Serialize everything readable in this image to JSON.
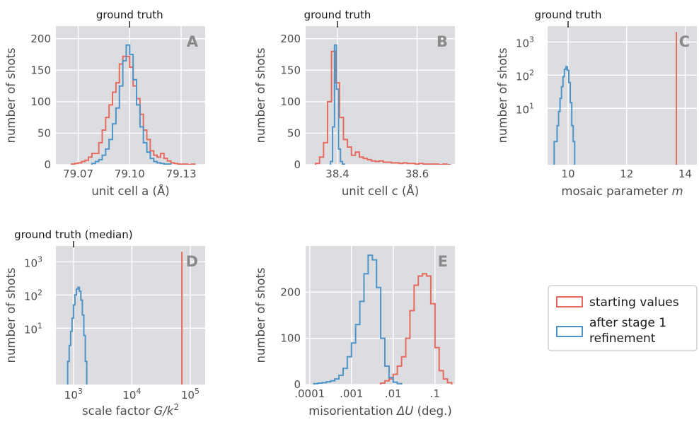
{
  "legend": {
    "entries": [
      {
        "name": "starting values",
        "color": "#e8695d"
      },
      {
        "name": "after stage 1 refinement",
        "line1": "after stage 1",
        "line2": "refinement",
        "color": "#4d94c9"
      }
    ]
  },
  "chart_data": [
    {
      "id": "A",
      "type": "histogram",
      "panel_letter": "A",
      "annotation": "ground truth",
      "annotation_x": 79.1,
      "xlabel": "unit cell a (Å)",
      "ylabel": "number of shots",
      "xlim": [
        79.057,
        79.144
      ],
      "ylim": [
        0,
        220
      ],
      "xticks": [
        {
          "v": 79.07,
          "label": "79.07"
        },
        {
          "v": 79.1,
          "label": "79.10"
        },
        {
          "v": 79.13,
          "label": "79.13"
        }
      ],
      "yticks": [
        {
          "v": 0,
          "label": "0"
        },
        {
          "v": 50,
          "label": "50"
        },
        {
          "v": 100,
          "label": "100"
        },
        {
          "v": 150,
          "label": "150"
        },
        {
          "v": 200,
          "label": "200"
        }
      ],
      "series": [
        {
          "name": "starting values",
          "color": "#e8695d",
          "x": [
            79.067,
            79.069,
            79.071,
            79.073,
            79.075,
            79.077,
            79.079,
            79.081,
            79.083,
            79.085,
            79.087,
            79.089,
            79.091,
            79.093,
            79.095,
            79.097,
            79.099,
            79.101,
            79.103,
            79.105,
            79.107,
            79.109,
            79.111,
            79.113,
            79.115,
            79.117,
            79.119,
            79.121,
            79.123,
            79.125,
            79.127,
            79.129,
            79.131,
            79.133,
            79.135,
            79.137
          ],
          "y": [
            1,
            2,
            3,
            5,
            7,
            12,
            18,
            18,
            35,
            55,
            75,
            95,
            115,
            130,
            160,
            172,
            172,
            155,
            125,
            105,
            80,
            55,
            40,
            22,
            15,
            12,
            18,
            10,
            6,
            3,
            2,
            1,
            1,
            1,
            0,
            1
          ]
        },
        {
          "name": "after stage 1 refinement",
          "color": "#4d94c9",
          "x": [
            79.079,
            79.081,
            79.083,
            79.085,
            79.087,
            79.089,
            79.091,
            79.093,
            79.095,
            79.097,
            79.099,
            79.101,
            79.103,
            79.105,
            79.107,
            79.109,
            79.111,
            79.113,
            79.115,
            79.117,
            79.119,
            79.121,
            79.123
          ],
          "y": [
            2,
            5,
            8,
            15,
            25,
            40,
            65,
            90,
            125,
            165,
            190,
            175,
            135,
            95,
            60,
            35,
            20,
            10,
            5,
            3,
            2,
            1,
            1
          ]
        }
      ]
    },
    {
      "id": "B",
      "type": "histogram",
      "panel_letter": "B",
      "annotation": "ground truth",
      "annotation_x": 38.4,
      "xlabel": "unit cell c (Å)",
      "ylabel": "number of shots",
      "xlim": [
        38.32,
        38.695
      ],
      "ylim": [
        0,
        220
      ],
      "xticks": [
        {
          "v": 38.4,
          "label": "38.4"
        },
        {
          "v": 38.6,
          "label": "38.6"
        }
      ],
      "yticks": [
        {
          "v": 0,
          "label": "0"
        },
        {
          "v": 50,
          "label": "50"
        },
        {
          "v": 100,
          "label": "100"
        },
        {
          "v": 150,
          "label": "150"
        },
        {
          "v": 200,
          "label": "200"
        }
      ],
      "series": [
        {
          "name": "starting values",
          "color": "#e8695d",
          "x": [
            38.35,
            38.36,
            38.37,
            38.38,
            38.39,
            38.4,
            38.41,
            38.42,
            38.43,
            38.44,
            38.45,
            38.46,
            38.47,
            38.48,
            38.49,
            38.5,
            38.51,
            38.52,
            38.53,
            38.54,
            38.55,
            38.56,
            38.57,
            38.58,
            38.59,
            38.6,
            38.61,
            38.62,
            38.63,
            38.64,
            38.65,
            38.66,
            38.67,
            38.68
          ],
          "y": [
            2,
            12,
            35,
            100,
            180,
            130,
            75,
            40,
            28,
            15,
            20,
            12,
            10,
            8,
            6,
            5,
            6,
            4,
            4,
            3,
            3,
            2,
            3,
            2,
            2,
            1,
            2,
            1,
            1,
            1,
            1,
            0,
            1,
            0
          ]
        },
        {
          "name": "after stage 1 refinement",
          "color": "#4d94c9",
          "x": [
            38.385,
            38.39,
            38.395,
            38.4,
            38.405,
            38.41,
            38.415
          ],
          "y": [
            5,
            60,
            190,
            120,
            25,
            5,
            1
          ]
        }
      ]
    },
    {
      "id": "C",
      "type": "histogram",
      "panel_letter": "C",
      "annotation": "ground truth",
      "annotation_x": 10,
      "xlabel": "mosaic parameter m",
      "xlabel_prefix": "mosaic parameter ",
      "xlabel_var": "m",
      "ylabel": "number of shots",
      "xscale": "linear",
      "yscale": "log",
      "xlim": [
        9.3,
        14.4
      ],
      "ylim": [
        0.2,
        3000
      ],
      "xticks": [
        {
          "v": 10,
          "label": "10"
        },
        {
          "v": 12,
          "label": "12"
        },
        {
          "v": 14,
          "label": "14"
        }
      ],
      "yticks": [
        {
          "v": 10,
          "base": "10",
          "exp": "1"
        },
        {
          "v": 100,
          "base": "10",
          "exp": "2"
        },
        {
          "v": 1000,
          "base": "10",
          "exp": "3"
        }
      ],
      "series": [
        {
          "name": "starting values",
          "color": "#e8695d",
          "vline_x": 13.7,
          "vline_y": 2000
        },
        {
          "name": "after stage 1 refinement",
          "color": "#4d94c9",
          "x": [
            9.55,
            9.6,
            9.65,
            9.7,
            9.75,
            9.8,
            9.85,
            9.9,
            9.95,
            10.0,
            10.05,
            10.1,
            10.15,
            10.2
          ],
          "y": [
            1,
            1,
            3,
            8,
            20,
            45,
            90,
            150,
            180,
            140,
            60,
            15,
            3,
            1
          ]
        }
      ]
    },
    {
      "id": "D",
      "type": "histogram",
      "panel_letter": "D",
      "annotation": "ground truth (median)",
      "annotation_x": 1000,
      "xlabel": "scale factor G/k²",
      "xlabel_prefix": "scale factor ",
      "xlabel_var": "G/k",
      "xlabel_sup": "2",
      "ylabel": "number of shots",
      "xscale": "log",
      "yscale": "log",
      "xlim": [
        500,
        180000
      ],
      "ylim": [
        0.2,
        3000
      ],
      "xticks": [
        {
          "v": 1000,
          "base": "10",
          "exp": "3"
        },
        {
          "v": 10000,
          "base": "10",
          "exp": "4"
        },
        {
          "v": 100000,
          "base": "10",
          "exp": "5"
        }
      ],
      "yticks": [
        {
          "v": 10,
          "base": "10",
          "exp": "1"
        },
        {
          "v": 100,
          "base": "10",
          "exp": "2"
        },
        {
          "v": 1000,
          "base": "10",
          "exp": "3"
        }
      ],
      "series": [
        {
          "name": "starting values",
          "color": "#e8695d",
          "vline_x": 72000,
          "vline_y": 2000
        },
        {
          "name": "after stage 1 refinement",
          "color": "#4d94c9",
          "x": [
            820,
            870,
            920,
            970,
            1030,
            1090,
            1160,
            1230,
            1300,
            1380,
            1460,
            1550,
            1640
          ],
          "y": [
            1,
            3,
            8,
            20,
            50,
            100,
            150,
            170,
            130,
            70,
            25,
            6,
            1
          ]
        }
      ]
    },
    {
      "id": "E",
      "type": "histogram",
      "panel_letter": "E",
      "xlabel": "misorientation ΔU (deg.)",
      "xlabel_prefix": "misorientation ",
      "xlabel_var": "ΔU",
      "xlabel_suffix": " (deg.)",
      "ylabel": "number of shots",
      "xscale": "log",
      "yscale": "linear",
      "xlim": [
        8e-05,
        0.3
      ],
      "ylim": [
        0,
        300
      ],
      "xticks": [
        {
          "v": 0.0001,
          "label": ".0001"
        },
        {
          "v": 0.001,
          "label": ".001"
        },
        {
          "v": 0.01,
          "label": ".01"
        },
        {
          "v": 0.1,
          "label": ".1"
        }
      ],
      "yticks": [
        {
          "v": 0,
          "label": "0"
        },
        {
          "v": 100,
          "label": "100"
        },
        {
          "v": 200,
          "label": "200"
        }
      ],
      "series": [
        {
          "name": "starting values",
          "color": "#e8695d",
          "x": [
            0.0056,
            0.0071,
            0.0089,
            0.0112,
            0.0141,
            0.0178,
            0.0224,
            0.0282,
            0.0355,
            0.0447,
            0.0562,
            0.0708,
            0.0891,
            0.1122,
            0.1413,
            0.1778,
            0.2239
          ],
          "y": [
            3,
            8,
            12,
            22,
            40,
            60,
            100,
            160,
            215,
            235,
            240,
            235,
            175,
            80,
            30,
            12,
            4
          ]
        },
        {
          "name": "after stage 1 refinement",
          "color": "#4d94c9",
          "x": [
            0.000141,
            0.000178,
            0.000224,
            0.000282,
            0.000355,
            0.000447,
            0.000562,
            0.000708,
            0.000891,
            0.00112,
            0.00141,
            0.00178,
            0.00224,
            0.00282,
            0.00355,
            0.00447,
            0.00562,
            0.00708,
            0.00891,
            0.0112,
            0.0141
          ],
          "y": [
            2,
            3,
            4,
            6,
            8,
            12,
            20,
            35,
            60,
            90,
            130,
            180,
            240,
            280,
            270,
            210,
            100,
            40,
            15,
            5,
            2
          ]
        }
      ]
    }
  ]
}
